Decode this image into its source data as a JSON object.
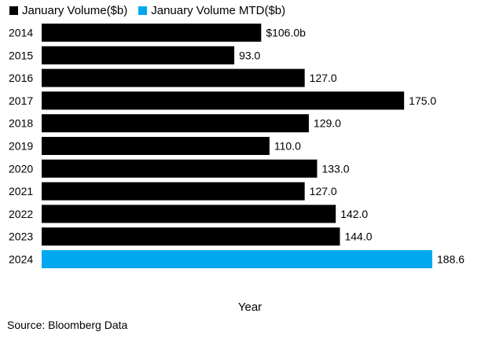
{
  "chart_data": {
    "type": "bar",
    "orientation": "horizontal",
    "categories": [
      "2014",
      "2015",
      "2016",
      "2017",
      "2018",
      "2019",
      "2020",
      "2021",
      "2022",
      "2023",
      "2024"
    ],
    "series": [
      {
        "name": "January Volume($b)",
        "color": "#000000",
        "values": [
          106.0,
          93.0,
          127.0,
          175.0,
          129.0,
          110.0,
          133.0,
          127.0,
          142.0,
          144.0,
          null
        ],
        "data_labels": [
          "$106.0b",
          "93.0",
          "127.0",
          "175.0",
          "129.0",
          "110.0",
          "133.0",
          "127.0",
          "142.0",
          "144.0",
          ""
        ]
      },
      {
        "name": "January Volume MTD($b)",
        "color": "#00a8f0",
        "values": [
          null,
          null,
          null,
          null,
          null,
          null,
          null,
          null,
          null,
          null,
          188.6
        ],
        "data_labels": [
          "",
          "",
          "",
          "",
          "",
          "",
          "",
          "",
          "",
          "",
          "188.6"
        ]
      }
    ],
    "xlabel": "Year",
    "ylabel": "",
    "xlim": [
      0,
      190
    ],
    "grid": false,
    "legend_position": "top-left"
  },
  "source": "Source: Bloomberg Data"
}
